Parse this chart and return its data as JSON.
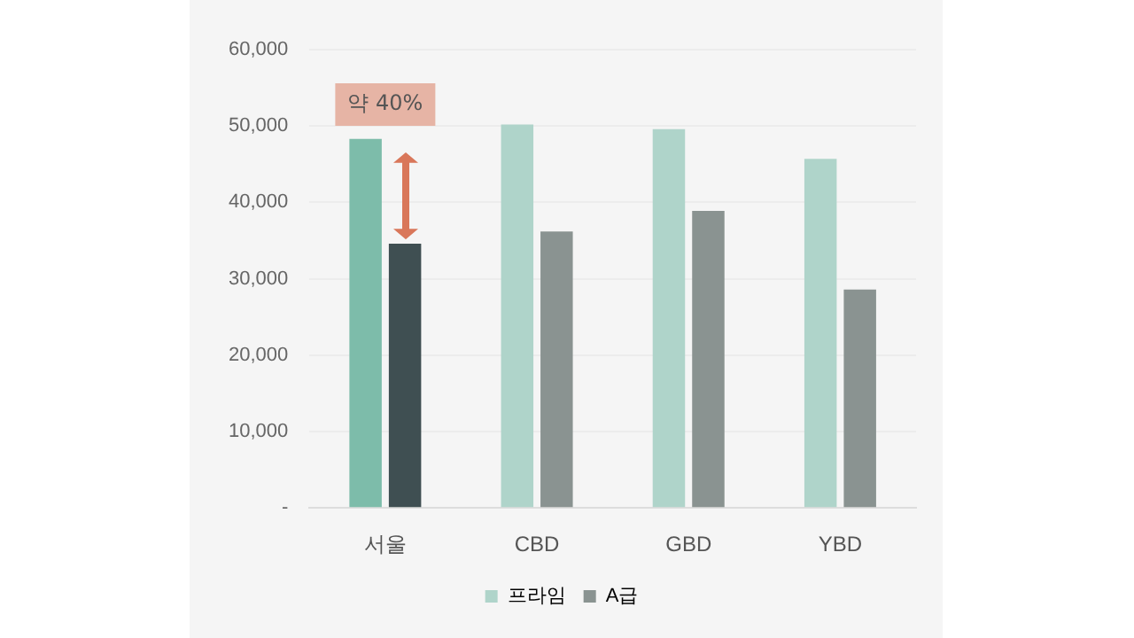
{
  "chart_data": {
    "type": "bar",
    "categories": [
      "서울",
      "CBD",
      "GBD",
      "YBD"
    ],
    "series": [
      {
        "name": "프라임",
        "color": "#afd4ca",
        "colors": [
          "#7dbcaa",
          "#afd4ca",
          "#afd4ca",
          "#afd4ca"
        ],
        "values": [
          48300,
          50200,
          49600,
          45700
        ]
      },
      {
        "name": "A급",
        "color": "#8a9391",
        "colors": [
          "#3f4f52",
          "#8a9391",
          "#8a9391",
          "#8a9391"
        ],
        "values": [
          34600,
          36200,
          38900,
          28600
        ]
      }
    ],
    "ylim": [
      0,
      60000
    ],
    "yticks": [
      {
        "value": 0,
        "label": "-"
      },
      {
        "value": 10000,
        "label": "10,000"
      },
      {
        "value": 20000,
        "label": "20,000"
      },
      {
        "value": 30000,
        "label": "30,000"
      },
      {
        "value": 40000,
        "label": "40,000"
      },
      {
        "value": 50000,
        "label": "50,000"
      },
      {
        "value": 60000,
        "label": "60,000"
      }
    ],
    "grid": "y",
    "legend": "bottom",
    "annotations": [
      "약 40%"
    ]
  }
}
